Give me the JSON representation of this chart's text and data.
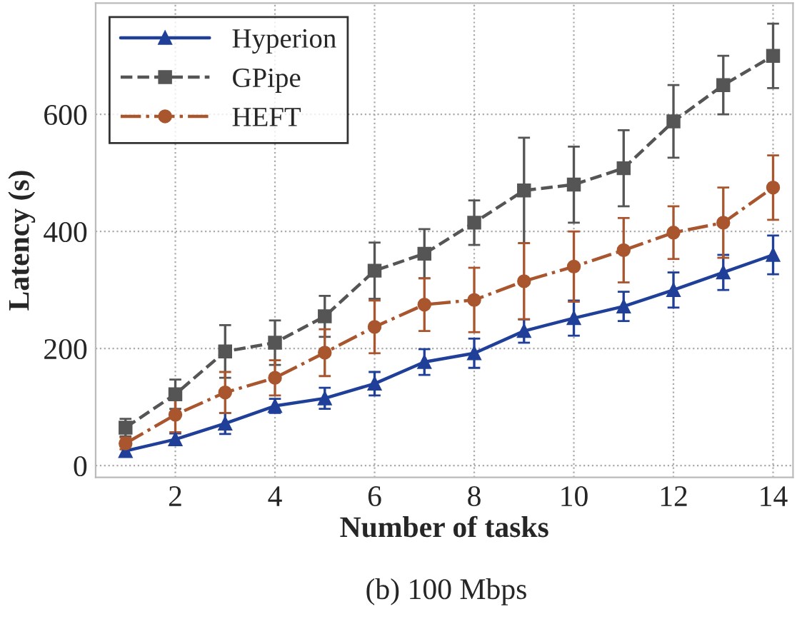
{
  "chart_data": {
    "type": "line",
    "xlabel": "Number of tasks",
    "ylabel": "Latency (s)",
    "x": [
      1,
      2,
      3,
      4,
      5,
      6,
      7,
      8,
      9,
      10,
      11,
      12,
      13,
      14
    ],
    "series": [
      {
        "name": "Hyperion",
        "color": "#1f3f99",
        "marker": "triangle",
        "line_style": "solid",
        "values": [
          25,
          45,
          72,
          102,
          115,
          140,
          177,
          192,
          230,
          252,
          272,
          300,
          330,
          360
        ],
        "errors": [
          8,
          10,
          18,
          12,
          18,
          20,
          22,
          25,
          20,
          30,
          25,
          30,
          30,
          33
        ]
      },
      {
        "name": "GPipe",
        "color": "#555555",
        "marker": "square",
        "line_style": "dashed",
        "values": [
          65,
          122,
          195,
          210,
          255,
          333,
          362,
          415,
          470,
          480,
          508,
          588,
          650,
          700
        ],
        "errors": [
          15,
          25,
          45,
          38,
          35,
          48,
          42,
          38,
          90,
          65,
          65,
          62,
          50,
          55
        ]
      },
      {
        "name": "HEFT",
        "color": "#a9552e",
        "marker": "circle",
        "line_style": "dashdot",
        "values": [
          38,
          87,
          125,
          150,
          193,
          237,
          275,
          283,
          315,
          340,
          368,
          398,
          415,
          475
        ],
        "errors": [
          10,
          30,
          35,
          30,
          40,
          45,
          45,
          55,
          65,
          60,
          55,
          45,
          60,
          55
        ]
      }
    ],
    "xlim": [
      0.4,
      14.4
    ],
    "ylim": [
      -20,
      790
    ],
    "xticks": [
      2,
      4,
      6,
      8,
      10,
      12,
      14
    ],
    "yticks": [
      0,
      200,
      400,
      600
    ],
    "grid": true,
    "legend": "top left",
    "annotations": [
      "(b) 100 Mbps"
    ]
  }
}
